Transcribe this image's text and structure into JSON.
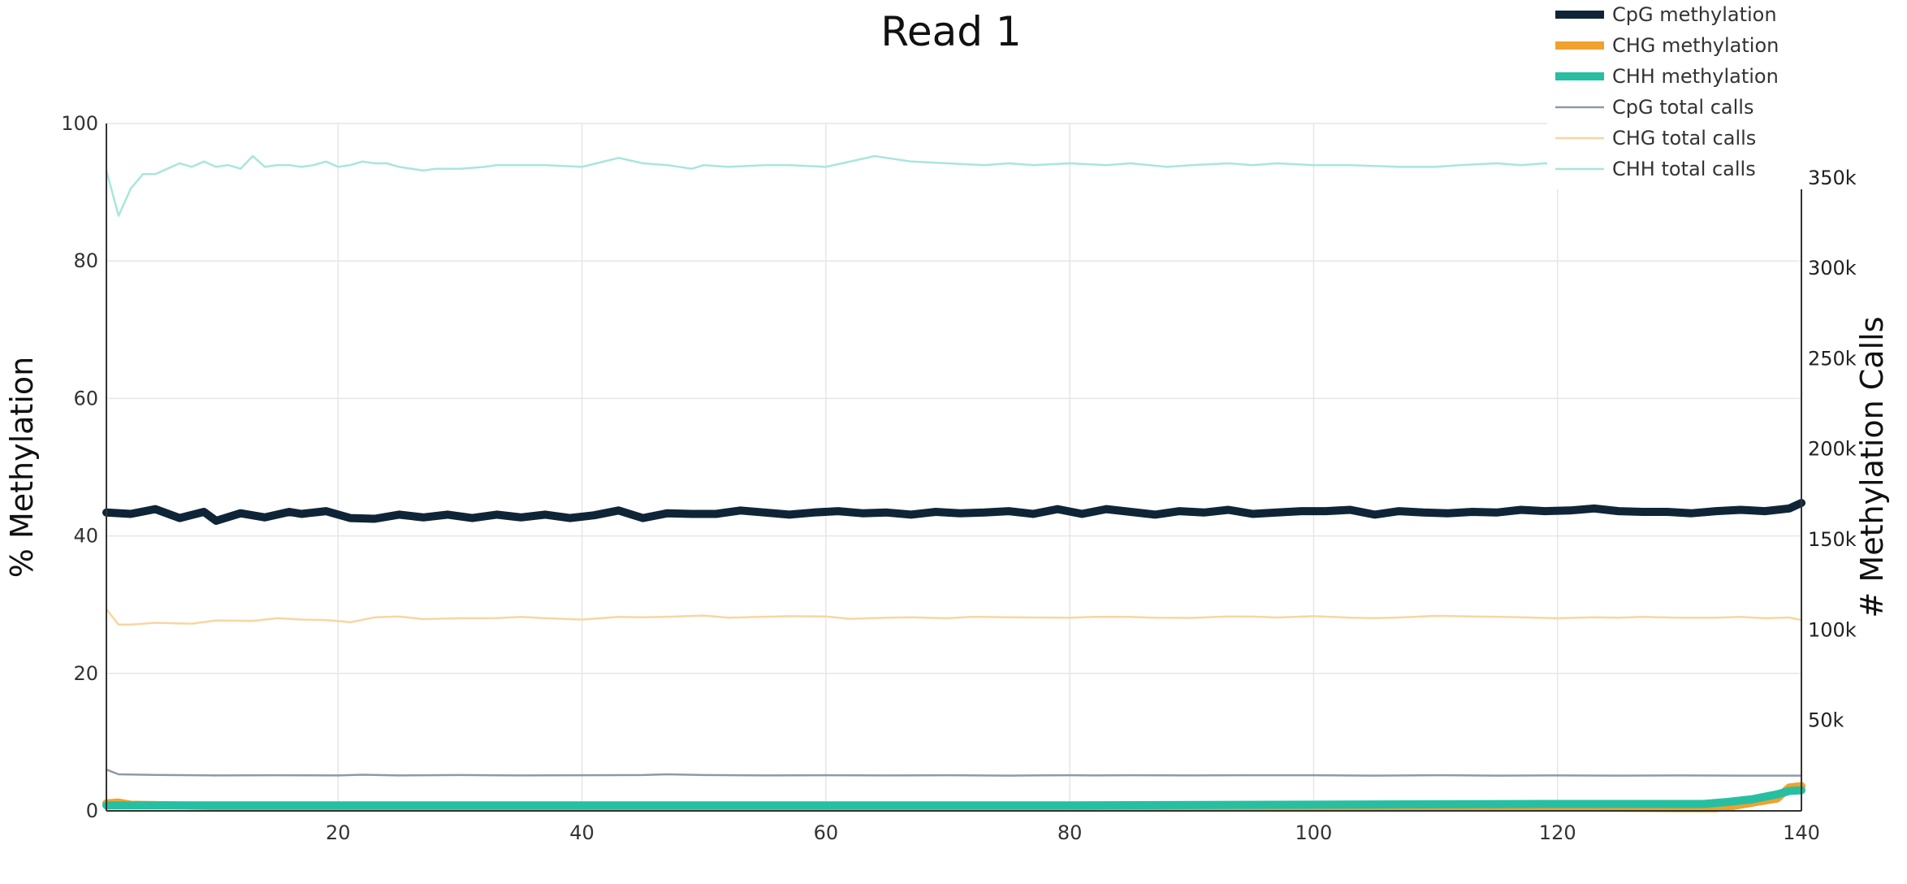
{
  "chart_data": {
    "type": "line",
    "title": "Read 1",
    "xlabel": "",
    "ylabel": "% Methylation",
    "y2label": "# Methylation Calls",
    "xlim": [
      1,
      140
    ],
    "ylim": [
      0,
      100
    ],
    "y2lim": [
      0,
      380000
    ],
    "x_ticks": [
      20,
      40,
      60,
      80,
      100,
      120,
      140
    ],
    "y_ticks": [
      0,
      20,
      40,
      60,
      80,
      100
    ],
    "y2_ticks": [
      {
        "value": 50000,
        "label": "50k"
      },
      {
        "value": 100000,
        "label": "100k"
      },
      {
        "value": 150000,
        "label": "150k"
      },
      {
        "value": 200000,
        "label": "200k"
      },
      {
        "value": 250000,
        "label": "250k"
      },
      {
        "value": 300000,
        "label": "300k"
      },
      {
        "value": 350000,
        "label": "350k"
      }
    ],
    "grid": true,
    "legend_position": "top-right",
    "series": [
      {
        "name": "CpG methylation",
        "axis": "y",
        "color": "#0f2537",
        "style": "thick",
        "x": [
          1,
          3,
          5,
          7,
          9,
          10,
          12,
          14,
          16,
          17,
          19,
          21,
          23,
          25,
          27,
          29,
          31,
          33,
          35,
          37,
          39,
          41,
          43,
          45,
          47,
          49,
          51,
          53,
          55,
          57,
          59,
          61,
          63,
          65,
          67,
          69,
          71,
          73,
          75,
          77,
          79,
          81,
          83,
          85,
          87,
          89,
          91,
          93,
          95,
          97,
          99,
          101,
          103,
          105,
          107,
          109,
          111,
          113,
          115,
          117,
          119,
          121,
          123,
          125,
          127,
          129,
          131,
          133,
          135,
          137,
          139,
          140
        ],
        "values": [
          43.4,
          43.2,
          43.9,
          42.6,
          43.5,
          42.2,
          43.3,
          42.7,
          43.5,
          43.2,
          43.6,
          42.6,
          42.5,
          43.1,
          42.7,
          43.1,
          42.6,
          43.1,
          42.7,
          43.1,
          42.6,
          43.0,
          43.7,
          42.6,
          43.3,
          43.2,
          43.2,
          43.7,
          43.4,
          43.1,
          43.4,
          43.6,
          43.3,
          43.4,
          43.1,
          43.5,
          43.3,
          43.4,
          43.6,
          43.2,
          43.9,
          43.2,
          43.9,
          43.5,
          43.1,
          43.6,
          43.4,
          43.8,
          43.2,
          43.4,
          43.6,
          43.6,
          43.8,
          43.1,
          43.6,
          43.4,
          43.3,
          43.5,
          43.4,
          43.8,
          43.6,
          43.7,
          44.0,
          43.6,
          43.5,
          43.5,
          43.3,
          43.6,
          43.8,
          43.6,
          44.0,
          44.8
        ]
      },
      {
        "name": "CHG methylation",
        "axis": "y",
        "color": "#f0a22d",
        "style": "thick",
        "x": [
          1,
          2,
          3,
          10,
          20,
          40,
          60,
          80,
          100,
          120,
          130,
          133,
          134,
          136,
          138,
          139,
          140
        ],
        "values": [
          1.1,
          1.2,
          0.9,
          0.7,
          0.7,
          0.7,
          0.7,
          0.7,
          0.7,
          0.5,
          0.4,
          0.4,
          0.6,
          1.2,
          1.8,
          3.4,
          3.6
        ]
      },
      {
        "name": "CHH methylation",
        "axis": "y",
        "color": "#27bfa1",
        "style": "thick",
        "x": [
          1,
          2,
          5,
          20,
          40,
          60,
          80,
          100,
          120,
          132,
          134,
          136,
          138,
          139,
          140
        ],
        "values": [
          0.8,
          0.8,
          0.8,
          0.8,
          0.8,
          0.8,
          0.8,
          0.9,
          1.0,
          1.0,
          1.3,
          1.7,
          2.4,
          2.9,
          3.0
        ]
      },
      {
        "name": "CpG total calls",
        "axis": "y2",
        "color": "#8e9aa6",
        "style": "thin",
        "x": [
          1,
          2,
          5,
          10,
          15,
          20,
          22,
          25,
          30,
          35,
          40,
          45,
          47,
          50,
          55,
          60,
          65,
          70,
          75,
          80,
          82,
          85,
          90,
          95,
          100,
          105,
          110,
          115,
          120,
          125,
          130,
          135,
          140
        ],
        "values": [
          22800,
          20200,
          19900,
          19600,
          19700,
          19600,
          20000,
          19600,
          19800,
          19600,
          19700,
          19800,
          20200,
          19800,
          19600,
          19700,
          19600,
          19700,
          19500,
          19700,
          19600,
          19700,
          19600,
          19700,
          19700,
          19500,
          19700,
          19500,
          19600,
          19500,
          19600,
          19500,
          19500
        ]
      },
      {
        "name": "CHG total calls",
        "axis": "y2",
        "color": "#f8d6a0",
        "style": "thin",
        "x": [
          1,
          2,
          3,
          5,
          8,
          10,
          13,
          15,
          17,
          19,
          21,
          23,
          25,
          27,
          30,
          33,
          35,
          37,
          40,
          43,
          45,
          47,
          50,
          52,
          55,
          57,
          60,
          62,
          65,
          67,
          70,
          72,
          75,
          77,
          80,
          82,
          85,
          87,
          90,
          93,
          95,
          97,
          100,
          103,
          105,
          107,
          110,
          113,
          115,
          117,
          120,
          123,
          125,
          127,
          130,
          133,
          135,
          137,
          139,
          140
        ],
        "values": [
          111500,
          103000,
          103000,
          104000,
          103500,
          105300,
          105000,
          106500,
          105800,
          105500,
          104300,
          107000,
          107500,
          106000,
          106500,
          106600,
          107200,
          106500,
          105800,
          107200,
          107000,
          107300,
          108000,
          106800,
          107300,
          107600,
          107500,
          106200,
          106800,
          107000,
          106500,
          107300,
          107000,
          106900,
          106800,
          107200,
          107200,
          106800,
          106700,
          107500,
          107400,
          106900,
          107600,
          106800,
          106600,
          106900,
          107800,
          107500,
          107300,
          107000,
          106500,
          107000,
          106800,
          107200,
          106800,
          106800,
          107200,
          106500,
          106900,
          105500
        ]
      },
      {
        "name": "CHH total calls",
        "axis": "y2",
        "color": "#a8e6dc",
        "style": "thin",
        "x": [
          1,
          2,
          3,
          4,
          5,
          6,
          7,
          8,
          9,
          10,
          11,
          12,
          13,
          14,
          15,
          16,
          17,
          18,
          19,
          20,
          21,
          22,
          23,
          24,
          25,
          27,
          28,
          30,
          32,
          33,
          35,
          37,
          40,
          43,
          45,
          47,
          49,
          50,
          52,
          55,
          57,
          60,
          64,
          67,
          70,
          73,
          75,
          77,
          80,
          83,
          85,
          88,
          90,
          93,
          95,
          97,
          100,
          103,
          107,
          110,
          112,
          115,
          117,
          119,
          121,
          139,
          140
        ],
        "values": [
          354000,
          329000,
          344000,
          352000,
          352000,
          355000,
          358000,
          356000,
          359000,
          356000,
          357000,
          355000,
          362000,
          356000,
          357000,
          357000,
          356000,
          357000,
          359000,
          356000,
          357000,
          359000,
          358000,
          358000,
          356000,
          354000,
          355000,
          355000,
          356000,
          357000,
          357000,
          357000,
          356000,
          361000,
          358000,
          357000,
          355000,
          357000,
          356000,
          357000,
          357000,
          356000,
          362000,
          359000,
          358000,
          357000,
          358000,
          357000,
          358000,
          357000,
          358000,
          356000,
          357000,
          358000,
          357000,
          358000,
          357000,
          357000,
          356000,
          356000,
          357000,
          358000,
          357000,
          358000,
          357000,
          356000,
          348000
        ]
      }
    ]
  }
}
